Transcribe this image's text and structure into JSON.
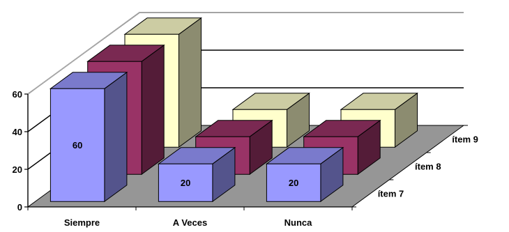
{
  "chart_data": {
    "type": "bar",
    "subtype": "3d-clustered-depth",
    "title": "",
    "xlabel": "",
    "ylabel": "",
    "categories": [
      "Siempre",
      "A Veces",
      "Nunca"
    ],
    "series": [
      {
        "name": "ítem 7",
        "values": [
          60,
          20,
          20
        ],
        "color": "#9999ff",
        "show_labels": true
      },
      {
        "name": "ítem 8",
        "values": [
          60,
          20,
          20
        ],
        "color": "#993366",
        "show_labels": false
      },
      {
        "name": "ítem 9",
        "values": [
          60,
          20,
          20
        ],
        "color": "#ffffcc",
        "show_labels": false
      }
    ],
    "yticks": [
      0,
      20,
      40,
      60
    ],
    "ylim": [
      0,
      60
    ],
    "floor_color": "#969696",
    "gridlines": true,
    "legend": "none"
  }
}
